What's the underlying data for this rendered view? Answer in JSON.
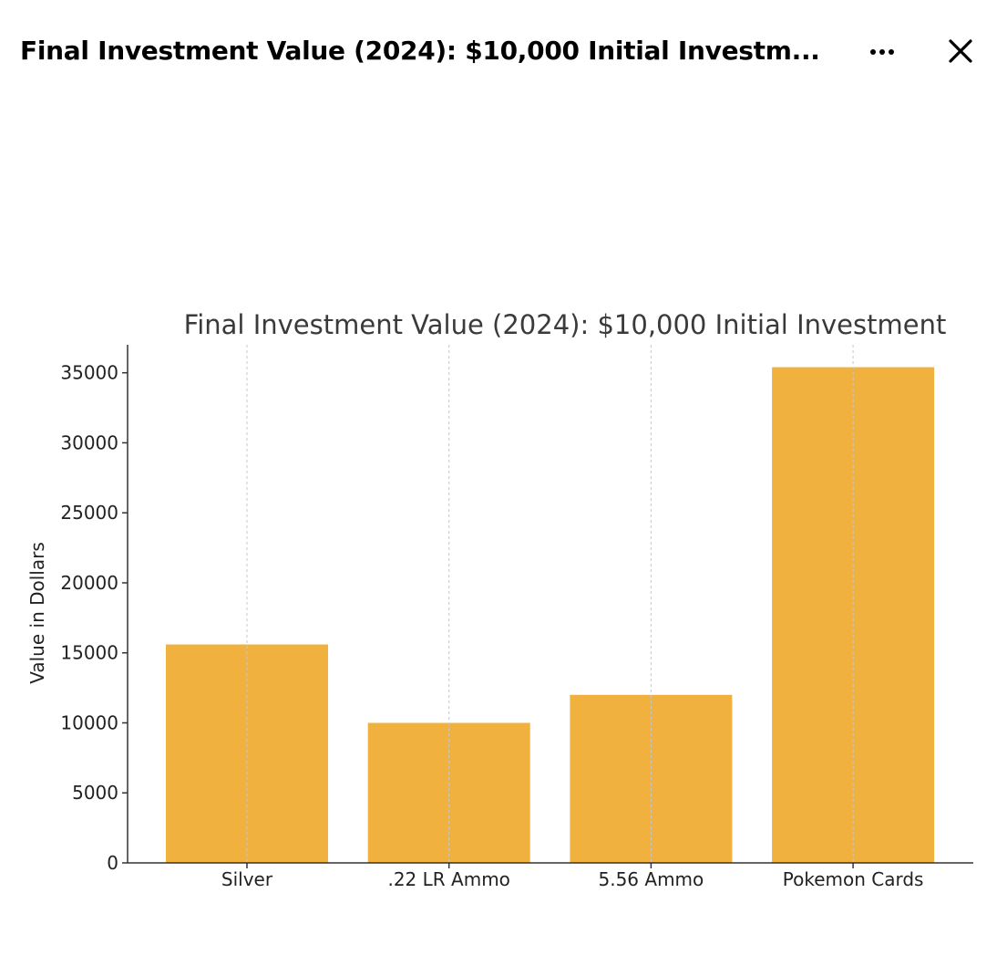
{
  "window": {
    "title": "Final Investment Value (2024): $10,000 Initial Investm...",
    "more_icon": "ellipsis-icon",
    "close_icon": "close-icon"
  },
  "chart_data": {
    "type": "bar",
    "title": "Final Investment Value (2024): $10,000 Initial Investment",
    "xlabel": "",
    "ylabel": "Value in Dollars",
    "categories": [
      "Silver",
      ".22 LR Ammo",
      "5.56 Ammo",
      "Pokemon Cards"
    ],
    "values": [
      15600,
      10000,
      12000,
      35400
    ],
    "ylim": [
      0,
      37000
    ],
    "yticks": [
      0,
      5000,
      10000,
      15000,
      20000,
      25000,
      30000,
      35000
    ],
    "grid": "vertical",
    "bar_color": "#f0b13f",
    "grid_color": "#c8c8c8",
    "axis_color": "#333333"
  }
}
